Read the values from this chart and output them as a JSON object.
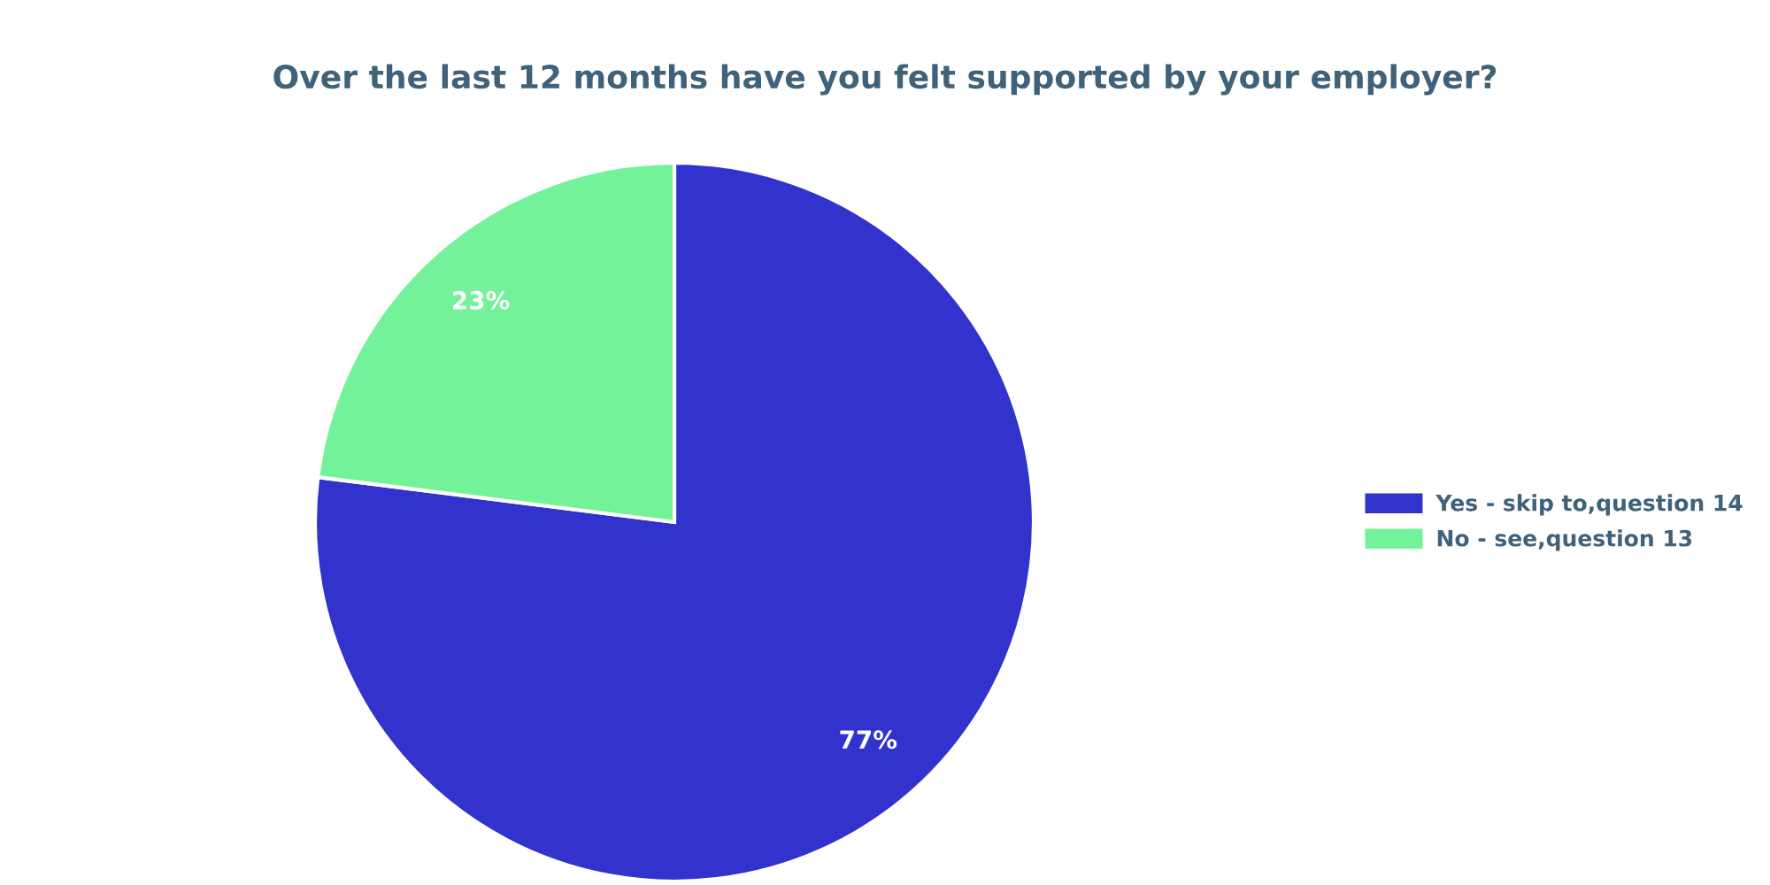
{
  "chart_data": {
    "type": "pie",
    "title": "Over the last 12 months have you felt supported by your employer?",
    "categories": [
      "Yes - skip to,question 14",
      "No - see,question 13"
    ],
    "values": [
      77,
      23
    ],
    "colors": [
      "#3232cc",
      "#74f29a"
    ],
    "value_labels": [
      "77%",
      "23%"
    ],
    "legend": "right"
  }
}
